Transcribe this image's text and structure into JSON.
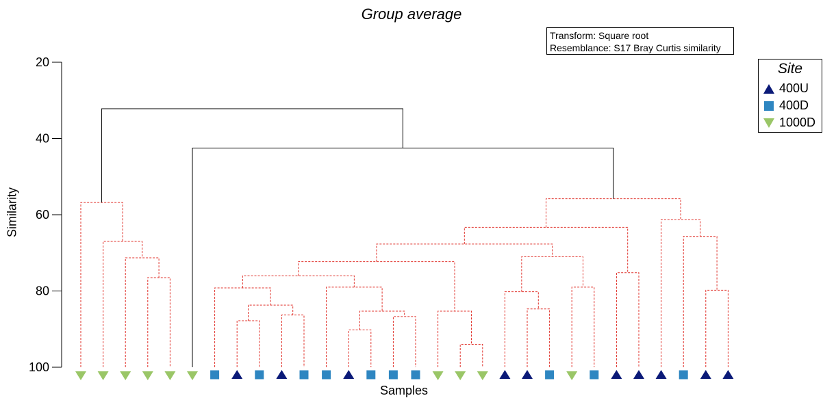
{
  "title": "Group average",
  "info": {
    "transform": "Transform: Square root",
    "resemblance": "Resemblance: S17 Bray Curtis similarity"
  },
  "legend": {
    "title": "Site",
    "items": [
      {
        "label": "400U",
        "marker": "triangle-up",
        "color": "#0b1a78"
      },
      {
        "label": "400D",
        "marker": "square",
        "color": "#2e86c1"
      },
      {
        "label": "1000D",
        "marker": "triangle-down",
        "color": "#9ac667"
      }
    ]
  },
  "colors": {
    "significant": "#000000",
    "nonsignificant": "#e0312a"
  },
  "chart_data": {
    "type": "dendrogram",
    "title": "Group average",
    "xlabel": "Samples",
    "ylabel": "Similarity",
    "ylim": [
      20,
      100
    ],
    "yticks": [
      20,
      40,
      60,
      80,
      100
    ],
    "y_inverted": true,
    "samples": [
      "1000D",
      "1000D",
      "1000D",
      "1000D",
      "1000D",
      "1000D",
      "400D",
      "400U",
      "400D",
      "400U",
      "400D",
      "400D",
      "400U",
      "400D",
      "400D",
      "400D",
      "1000D",
      "1000D",
      "1000D",
      "400U",
      "400U",
      "400D",
      "1000D",
      "400D",
      "400U",
      "400U",
      "400U",
      "400D",
      "400U",
      "400U"
    ],
    "merges": [
      {
        "left": "L4",
        "right": "L5",
        "similarity": 76.5,
        "style": "dashed"
      },
      {
        "left": "L3",
        "right": "M0",
        "similarity": 71.3,
        "style": "dashed"
      },
      {
        "left": "L2",
        "right": "M1",
        "similarity": 67.0,
        "style": "dashed"
      },
      {
        "left": "L1",
        "right": "M2",
        "similarity": 56.8,
        "style": "dashed"
      },
      {
        "left": "L8",
        "right": "L9",
        "similarity": 87.8,
        "style": "dashed"
      },
      {
        "left": "L10",
        "right": "L11",
        "similarity": 86.3,
        "style": "dashed"
      },
      {
        "left": "M4",
        "right": "M5",
        "similarity": 83.7,
        "style": "dashed"
      },
      {
        "left": "L7",
        "right": "M6",
        "similarity": 79.2,
        "style": "dashed"
      },
      {
        "left": "L13",
        "right": "L14",
        "similarity": 90.2,
        "style": "dashed"
      },
      {
        "left": "L15",
        "right": "L16",
        "similarity": 86.7,
        "style": "dashed"
      },
      {
        "left": "M8",
        "right": "M9",
        "similarity": 85.3,
        "style": "dashed"
      },
      {
        "left": "L12",
        "right": "M10",
        "similarity": 79.0,
        "style": "dashed"
      },
      {
        "left": "M7",
        "right": "M11",
        "similarity": 76.0,
        "style": "dashed"
      },
      {
        "left": "L18",
        "right": "L19",
        "similarity": 94.0,
        "style": "dashed"
      },
      {
        "left": "L17",
        "right": "M13",
        "similarity": 85.3,
        "style": "dashed"
      },
      {
        "left": "M12",
        "right": "M14",
        "similarity": 72.3,
        "style": "dashed"
      },
      {
        "left": "L21",
        "right": "L22",
        "similarity": 84.7,
        "style": "dashed"
      },
      {
        "left": "L20",
        "right": "M16",
        "similarity": 80.2,
        "style": "dashed"
      },
      {
        "left": "L23",
        "right": "L24",
        "similarity": 79.0,
        "style": "dashed"
      },
      {
        "left": "M17",
        "right": "M18",
        "similarity": 71.0,
        "style": "dashed"
      },
      {
        "left": "M15",
        "right": "M19",
        "similarity": 67.7,
        "style": "dashed"
      },
      {
        "left": "L25",
        "right": "L26",
        "similarity": 75.2,
        "style": "dashed"
      },
      {
        "left": "M20",
        "right": "M21",
        "similarity": 63.3,
        "style": "dashed"
      },
      {
        "left": "L29",
        "right": "L30",
        "similarity": 79.8,
        "style": "dashed"
      },
      {
        "left": "L28",
        "right": "M23",
        "similarity": 65.7,
        "style": "dashed"
      },
      {
        "left": "L27",
        "right": "M24",
        "similarity": 61.3,
        "style": "dashed"
      },
      {
        "left": "M22",
        "right": "M25",
        "similarity": 55.8,
        "style": "dashed"
      },
      {
        "left": "L6",
        "right": "M26",
        "similarity": 42.5,
        "style": "solid"
      },
      {
        "left": "M3",
        "right": "M27",
        "similarity": 32.2,
        "style": "solid"
      }
    ]
  }
}
